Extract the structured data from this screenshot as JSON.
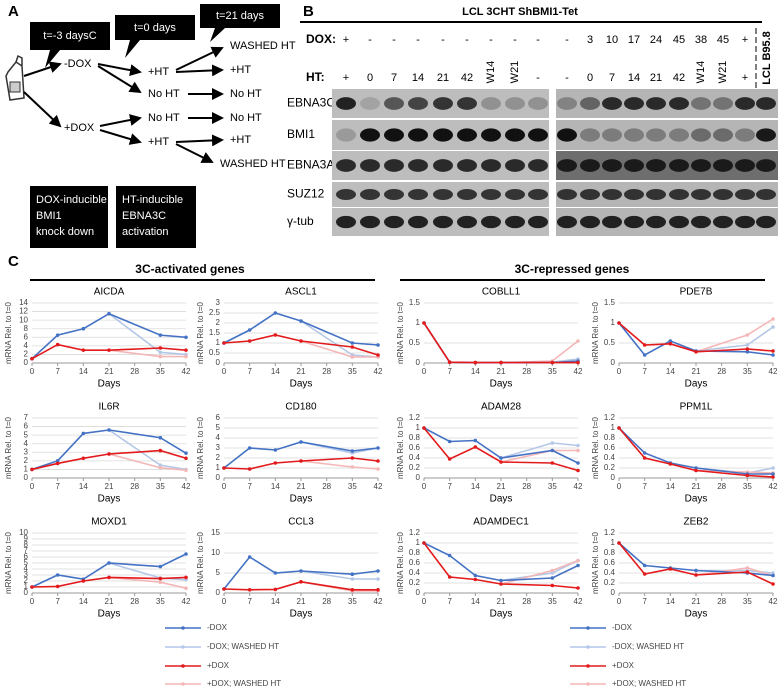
{
  "panel_labels": [
    "A",
    "B",
    "C"
  ],
  "schematic": {
    "callouts": [
      "t=-3 daysC",
      "t=0 days",
      "t=21 days"
    ],
    "dox_arms": [
      "-DOX",
      "+DOX"
    ],
    "t0_arms": [
      "+HT",
      "No HT",
      "No HT",
      "+HT"
    ],
    "t21_arms": [
      "WASHED HT",
      "+HT",
      "No HT",
      "No HT",
      "+HT",
      "WASHED HT"
    ],
    "box_dox": [
      "DOX-inducible",
      "BMI1",
      "knock down"
    ],
    "box_ht": [
      "HT-inducible",
      "EBNA3C",
      "activation"
    ]
  },
  "blot": {
    "title": "LCL 3CHT ShBMI1-Tet",
    "dox_label": "DOX:",
    "ht_label": "HT:",
    "dox": [
      "+",
      "-",
      "-",
      "-",
      "-",
      "-",
      "-",
      "-",
      "-",
      "-",
      "3",
      "10",
      "17",
      "24",
      "45",
      "38",
      "45",
      "+"
    ],
    "ht": [
      "+",
      "0",
      "7",
      "14",
      "21",
      "42",
      "W14",
      "W21",
      "-",
      "-",
      "0",
      "7",
      "14",
      "21",
      "42",
      "W14",
      "W21",
      "+"
    ],
    "reference_lane": "LCL B95.8",
    "rows": [
      "EBNA3C",
      "BMI1",
      "EBNA3A",
      "SUZ12",
      "γ-tub"
    ]
  },
  "groups": [
    "3C-activated genes",
    "3C-repressed genes"
  ],
  "chart_data": [
    {
      "type": "line",
      "title": "AICDA",
      "xlabel": "Days",
      "ylabel": "mRNA Rel. to t=0",
      "x": [
        0,
        7,
        14,
        21,
        35,
        42
      ],
      "xlim": [
        0,
        42
      ],
      "xticks": [
        0,
        7,
        14,
        21,
        28,
        35,
        42
      ],
      "ylim": [
        0,
        14
      ],
      "yticks": [
        0,
        2,
        4,
        6,
        8,
        10,
        12,
        14
      ],
      "grid": true,
      "series": [
        {
          "name": "-DOX",
          "color": "#4472c4",
          "values": [
            1,
            6.5,
            8,
            11.5,
            6.5,
            6
          ]
        },
        {
          "name": "-DOX; WASHED HT",
          "color": "#b4c7e7",
          "values": [
            null,
            null,
            null,
            11.5,
            2.5,
            2
          ]
        },
        {
          "name": "+DOX",
          "color": "#e31a1c",
          "values": [
            1,
            4.3,
            3,
            3,
            3.5,
            3
          ]
        },
        {
          "name": "+DOX; WASHED HT",
          "color": "#f4b6b6",
          "values": [
            null,
            null,
            null,
            3,
            1.5,
            1.5
          ]
        }
      ]
    },
    {
      "type": "line",
      "title": "ASCL1",
      "xlabel": "Days",
      "ylabel": "mRNA Rel. to t=0",
      "x": [
        0,
        7,
        14,
        21,
        35,
        42
      ],
      "xlim": [
        0,
        42
      ],
      "xticks": [
        0,
        7,
        14,
        21,
        28,
        35,
        42
      ],
      "ylim": [
        0,
        3
      ],
      "yticks": [
        0,
        0.5,
        1,
        1.5,
        2,
        2.5,
        3
      ],
      "grid": true,
      "series": [
        {
          "name": "-DOX",
          "color": "#4472c4",
          "values": [
            1,
            1.65,
            2.5,
            2.1,
            1,
            0.9
          ]
        },
        {
          "name": "-DOX; WASHED HT",
          "color": "#b4c7e7",
          "values": [
            null,
            null,
            null,
            2.1,
            0.4,
            0.3
          ]
        },
        {
          "name": "+DOX",
          "color": "#e31a1c",
          "values": [
            1,
            1.1,
            1.4,
            1.1,
            0.8,
            0.4
          ]
        },
        {
          "name": "+DOX; WASHED HT",
          "color": "#f4b6b6",
          "values": [
            null,
            null,
            null,
            1.1,
            0.3,
            0.3
          ]
        }
      ]
    },
    {
      "type": "line",
      "title": "COBLL1",
      "xlabel": "Days",
      "ylabel": "mRNA Rel. to t=0",
      "x": [
        0,
        7,
        14,
        21,
        35,
        42
      ],
      "xlim": [
        0,
        42
      ],
      "xticks": [
        0,
        7,
        14,
        21,
        28,
        35,
        42
      ],
      "ylim": [
        0,
        1.5
      ],
      "yticks": [
        0,
        0.5,
        1,
        1.5
      ],
      "grid": true,
      "series": [
        {
          "name": "-DOX",
          "color": "#4472c4",
          "values": [
            1,
            0.02,
            0.01,
            0.01,
            0.01,
            0.05
          ]
        },
        {
          "name": "-DOX; WASHED HT",
          "color": "#b4c7e7",
          "values": [
            null,
            null,
            null,
            0.01,
            0.02,
            0.1
          ]
        },
        {
          "name": "+DOX",
          "color": "#e31a1c",
          "values": [
            1,
            0.02,
            0.01,
            0.01,
            0.01,
            0.01
          ]
        },
        {
          "name": "+DOX; WASHED HT",
          "color": "#f4b6b6",
          "values": [
            null,
            null,
            null,
            0.01,
            0.05,
            0.55
          ]
        }
      ]
    },
    {
      "type": "line",
      "title": "PDE7B",
      "xlabel": "Days",
      "ylabel": "mRNA Rel. to t=0",
      "x": [
        0,
        7,
        14,
        21,
        35,
        42
      ],
      "xlim": [
        0,
        42
      ],
      "xticks": [
        0,
        7,
        14,
        21,
        28,
        35,
        42
      ],
      "ylim": [
        0,
        1.5
      ],
      "yticks": [
        0,
        0.5,
        1,
        1.5
      ],
      "grid": true,
      "series": [
        {
          "name": "-DOX",
          "color": "#4472c4",
          "values": [
            1,
            0.2,
            0.55,
            0.3,
            0.28,
            0.2
          ]
        },
        {
          "name": "-DOX; WASHED HT",
          "color": "#b4c7e7",
          "values": [
            null,
            null,
            null,
            0.3,
            0.45,
            0.9
          ]
        },
        {
          "name": "+DOX",
          "color": "#e31a1c",
          "values": [
            1,
            0.45,
            0.48,
            0.28,
            0.35,
            0.3
          ]
        },
        {
          "name": "+DOX; WASHED HT",
          "color": "#f4b6b6",
          "values": [
            null,
            null,
            null,
            0.28,
            0.7,
            1.1
          ]
        }
      ]
    },
    {
      "type": "line",
      "title": "IL6R",
      "xlabel": "Days",
      "ylabel": "mRNA Rel. to t=0",
      "x": [
        0,
        7,
        14,
        21,
        35,
        42
      ],
      "xlim": [
        0,
        42
      ],
      "xticks": [
        0,
        7,
        14,
        21,
        28,
        35,
        42
      ],
      "ylim": [
        0,
        7
      ],
      "yticks": [
        0,
        1,
        2,
        3,
        4,
        5,
        6,
        7
      ],
      "grid": true,
      "series": [
        {
          "name": "-DOX",
          "color": "#4472c4",
          "values": [
            1,
            2,
            5.2,
            5.6,
            4.7,
            2.9
          ]
        },
        {
          "name": "-DOX; WASHED HT",
          "color": "#b4c7e7",
          "values": [
            null,
            null,
            null,
            5.6,
            1.5,
            1
          ]
        },
        {
          "name": "+DOX",
          "color": "#e31a1c",
          "values": [
            1,
            1.7,
            2.3,
            2.8,
            3.2,
            2.3
          ]
        },
        {
          "name": "+DOX; WASHED HT",
          "color": "#f4b6b6",
          "values": [
            null,
            null,
            null,
            2.8,
            1.2,
            0.9
          ]
        }
      ]
    },
    {
      "type": "line",
      "title": "CD180",
      "xlabel": "Days",
      "ylabel": "mRNA Rel. to t=0",
      "x": [
        0,
        7,
        14,
        21,
        35,
        42
      ],
      "xlim": [
        0,
        42
      ],
      "xticks": [
        0,
        7,
        14,
        21,
        28,
        35,
        42
      ],
      "ylim": [
        0,
        6
      ],
      "yticks": [
        0,
        1,
        2,
        3,
        4,
        5,
        6
      ],
      "grid": true,
      "series": [
        {
          "name": "-DOX",
          "color": "#4472c4",
          "values": [
            1,
            3,
            2.8,
            3.6,
            2.7,
            3
          ]
        },
        {
          "name": "-DOX; WASHED HT",
          "color": "#b4c7e7",
          "values": [
            null,
            null,
            null,
            3.6,
            2.5,
            3
          ]
        },
        {
          "name": "+DOX",
          "color": "#e31a1c",
          "values": [
            1,
            0.9,
            1.5,
            1.7,
            2,
            1.7
          ]
        },
        {
          "name": "+DOX; WASHED HT",
          "color": "#f4b6b6",
          "values": [
            null,
            null,
            null,
            1.7,
            1.1,
            0.9
          ]
        }
      ]
    },
    {
      "type": "line",
      "title": "ADAM28",
      "xlabel": "Days",
      "ylabel": "mRNA Rel. to t=0",
      "x": [
        0,
        7,
        14,
        21,
        35,
        42
      ],
      "xlim": [
        0,
        42
      ],
      "xticks": [
        0,
        7,
        14,
        21,
        28,
        35,
        42
      ],
      "ylim": [
        0,
        1.2
      ],
      "yticks": [
        0,
        0.2,
        0.4,
        0.6,
        0.8,
        1,
        1.2
      ],
      "grid": true,
      "series": [
        {
          "name": "-DOX",
          "color": "#4472c4",
          "values": [
            1,
            0.73,
            0.75,
            0.4,
            0.55,
            0.3
          ]
        },
        {
          "name": "-DOX; WASHED HT",
          "color": "#b4c7e7",
          "values": [
            null,
            null,
            null,
            0.4,
            0.7,
            0.65
          ]
        },
        {
          "name": "+DOX",
          "color": "#e31a1c",
          "values": [
            1,
            0.38,
            0.62,
            0.32,
            0.3,
            0.15
          ]
        },
        {
          "name": "+DOX; WASHED HT",
          "color": "#f4b6b6",
          "values": [
            null,
            null,
            null,
            0.32,
            0.55,
            0.55
          ]
        }
      ]
    },
    {
      "type": "line",
      "title": "PPM1L",
      "xlabel": "Days",
      "ylabel": "mRNA Rel. to t=0",
      "x": [
        0,
        7,
        14,
        21,
        35,
        42
      ],
      "xlim": [
        0,
        42
      ],
      "xticks": [
        0,
        7,
        14,
        21,
        28,
        35,
        42
      ],
      "ylim": [
        0,
        1.2
      ],
      "yticks": [
        0,
        0.2,
        0.4,
        0.6,
        0.8,
        1,
        1.2
      ],
      "grid": true,
      "series": [
        {
          "name": "-DOX",
          "color": "#4472c4",
          "values": [
            1,
            0.5,
            0.3,
            0.2,
            0.08,
            0.08
          ]
        },
        {
          "name": "-DOX; WASHED HT",
          "color": "#b4c7e7",
          "values": [
            null,
            null,
            null,
            0.2,
            0.1,
            0.2
          ]
        },
        {
          "name": "+DOX",
          "color": "#e31a1c",
          "values": [
            1,
            0.4,
            0.28,
            0.15,
            0.05,
            0.02
          ]
        },
        {
          "name": "+DOX; WASHED HT",
          "color": "#f4b6b6",
          "values": [
            null,
            null,
            null,
            0.15,
            0.12,
            0.1
          ]
        }
      ]
    },
    {
      "type": "line",
      "title": "MOXD1",
      "xlabel": "Days",
      "ylabel": "mRNA Rel. to t=0",
      "x": [
        0,
        7,
        14,
        21,
        35,
        42
      ],
      "xlim": [
        0,
        42
      ],
      "xticks": [
        0,
        7,
        14,
        21,
        28,
        35,
        42
      ],
      "ylim": [
        0,
        10
      ],
      "yticks": [
        0,
        1,
        2,
        3,
        4,
        5,
        6,
        7,
        8,
        9,
        10
      ],
      "grid": true,
      "series": [
        {
          "name": "-DOX",
          "color": "#4472c4",
          "values": [
            1,
            3,
            2.3,
            5,
            4.4,
            6.5
          ]
        },
        {
          "name": "-DOX; WASHED HT",
          "color": "#b4c7e7",
          "values": [
            null,
            null,
            null,
            5,
            2.5,
            2.2
          ]
        },
        {
          "name": "+DOX",
          "color": "#e31a1c",
          "values": [
            1,
            1.1,
            2,
            2.6,
            2.4,
            2.6
          ]
        },
        {
          "name": "+DOX; WASHED HT",
          "color": "#f4b6b6",
          "values": [
            null,
            null,
            null,
            2.6,
            1.8,
            0.8
          ]
        }
      ]
    },
    {
      "type": "line",
      "title": "CCL3",
      "xlabel": "Days",
      "ylabel": "mRNA Rel. to t=0",
      "x": [
        0,
        7,
        14,
        21,
        35,
        42
      ],
      "xlim": [
        0,
        42
      ],
      "xticks": [
        0,
        7,
        14,
        21,
        28,
        35,
        42
      ],
      "ylim": [
        0,
        15
      ],
      "yticks": [
        0,
        5,
        10,
        15
      ],
      "grid": true,
      "series": [
        {
          "name": "-DOX",
          "color": "#4472c4",
          "values": [
            1,
            9,
            5,
            5.5,
            4.7,
            5.5
          ]
        },
        {
          "name": "-DOX; WASHED HT",
          "color": "#b4c7e7",
          "values": [
            null,
            null,
            null,
            5.5,
            3.5,
            3.5
          ]
        },
        {
          "name": "+DOX",
          "color": "#e31a1c",
          "values": [
            1,
            0.8,
            0.9,
            2.8,
            0.8,
            0.8
          ]
        },
        {
          "name": "+DOX; WASHED HT",
          "color": "#f4b6b6",
          "values": [
            null,
            null,
            null,
            2.8,
            0.5,
            0.5
          ]
        }
      ]
    },
    {
      "type": "line",
      "title": "ADAMDEC1",
      "xlabel": "Days",
      "ylabel": "mRNA Rel. to t=0",
      "x": [
        0,
        7,
        14,
        21,
        35,
        42
      ],
      "xlim": [
        0,
        42
      ],
      "xticks": [
        0,
        7,
        14,
        21,
        28,
        35,
        42
      ],
      "ylim": [
        0,
        1.2
      ],
      "yticks": [
        0,
        0.2,
        0.4,
        0.6,
        0.8,
        1,
        1.2
      ],
      "grid": true,
      "series": [
        {
          "name": "-DOX",
          "color": "#4472c4",
          "values": [
            1,
            0.75,
            0.35,
            0.25,
            0.3,
            0.55
          ]
        },
        {
          "name": "-DOX; WASHED HT",
          "color": "#b4c7e7",
          "values": [
            null,
            null,
            null,
            0.25,
            0.4,
            0.65
          ]
        },
        {
          "name": "+DOX",
          "color": "#e31a1c",
          "values": [
            1,
            0.32,
            0.27,
            0.18,
            0.15,
            0.1
          ]
        },
        {
          "name": "+DOX; WASHED HT",
          "color": "#f4b6b6",
          "values": [
            null,
            null,
            null,
            0.18,
            0.45,
            0.65
          ]
        }
      ]
    },
    {
      "type": "line",
      "title": "ZEB2",
      "xlabel": "Days",
      "ylabel": "mRNA Rel. to t=0",
      "x": [
        0,
        7,
        14,
        21,
        35,
        42
      ],
      "xlim": [
        0,
        42
      ],
      "xticks": [
        0,
        7,
        14,
        21,
        28,
        35,
        42
      ],
      "ylim": [
        0,
        1.2
      ],
      "yticks": [
        0,
        0.2,
        0.4,
        0.6,
        0.8,
        1,
        1.2
      ],
      "grid": true,
      "series": [
        {
          "name": "-DOX",
          "color": "#4472c4",
          "values": [
            1,
            0.55,
            0.5,
            0.45,
            0.4,
            0.35
          ]
        },
        {
          "name": "-DOX; WASHED HT",
          "color": "#b4c7e7",
          "values": [
            null,
            null,
            null,
            0.45,
            0.45,
            0.4
          ]
        },
        {
          "name": "+DOX",
          "color": "#e31a1c",
          "values": [
            1,
            0.38,
            0.48,
            0.36,
            0.42,
            0.18
          ]
        },
        {
          "name": "+DOX; WASHED HT",
          "color": "#f4b6b6",
          "values": [
            null,
            null,
            null,
            0.36,
            0.5,
            0.35
          ]
        }
      ]
    }
  ]
}
